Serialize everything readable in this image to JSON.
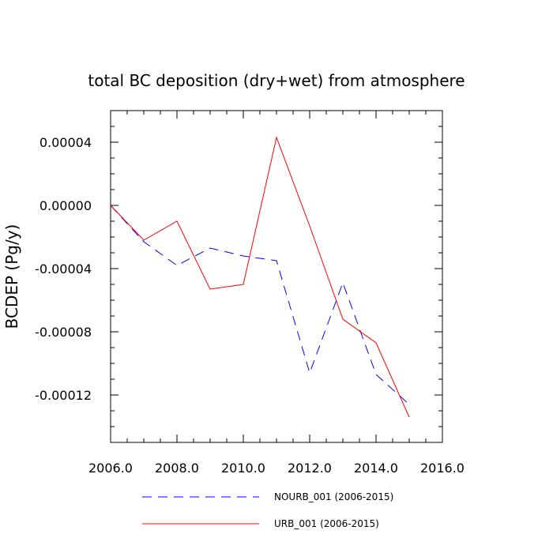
{
  "chart_data": {
    "type": "line",
    "title": "total BC deposition (dry+wet) from atmosphere",
    "xlabel": "",
    "ylabel": "BCDEP  (Pg/y)",
    "xlim": [
      2006,
      2016
    ],
    "ylim": [
      -0.00015,
      6e-05
    ],
    "x_ticks": [
      2006,
      2008,
      2010,
      2012,
      2014,
      2016
    ],
    "x_tick_labels": [
      "2006.0",
      "2008.0",
      "2010.0",
      "2012.0",
      "2014.0",
      "2016.0"
    ],
    "y_ticks": [
      4e-05,
      0.0,
      -4e-05,
      -8e-05,
      -0.00012
    ],
    "y_tick_labels": [
      "0.00004",
      "0.00000",
      "-0.00004",
      "-0.00008",
      "-0.00012"
    ],
    "x": [
      2006,
      2007,
      2008,
      2009,
      2010,
      2011,
      2012,
      2013,
      2014,
      2015
    ],
    "series": [
      {
        "name": "NOURB_001 (2006-2015)",
        "color": "#0000ff",
        "style": "dashed",
        "values": [
          0.0,
          -2.3e-05,
          -3.8e-05,
          -2.7e-05,
          -3.2e-05,
          -3.5e-05,
          -0.000106,
          -4.9e-05,
          -0.000107,
          -0.000126
        ]
      },
      {
        "name": "URB_001 (2006-2015)",
        "color": "#ff0000",
        "style": "solid",
        "values": [
          0.0,
          -2.2e-05,
          -1e-05,
          -5.3e-05,
          -5e-05,
          4.3e-05,
          -1.3e-05,
          -7.2e-05,
          -8.7e-05,
          -0.000134
        ]
      }
    ],
    "grid": false,
    "legend_position": "bottom"
  }
}
